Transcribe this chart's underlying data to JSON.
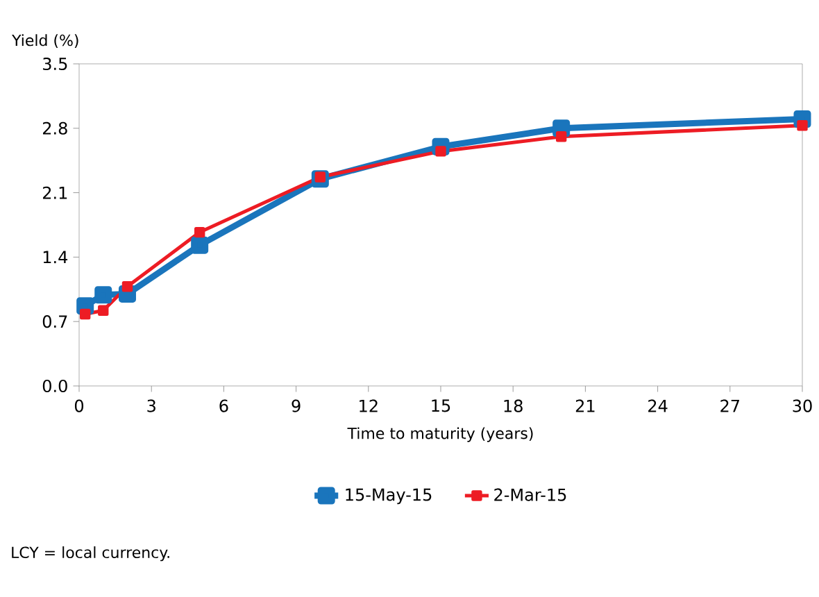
{
  "chart_data": {
    "type": "line",
    "ylabel": "Yield (%)",
    "xlabel": "Time to maturity (years)",
    "xlim": [
      0,
      30
    ],
    "xticks": [
      0,
      3,
      6,
      9,
      12,
      15,
      18,
      21,
      24,
      27,
      30
    ],
    "ylim": [
      0,
      3.5
    ],
    "yticks": [
      {
        "value": 0,
        "label": "0.0"
      },
      0.7,
      1.4,
      2.1,
      2.8,
      3.5
    ],
    "legend": "bottom",
    "marker": "square",
    "line_style": "solid",
    "series": [
      {
        "name": "15-May-15",
        "color": "#1a75bc",
        "x": [
          0.25,
          1,
          2,
          5,
          10,
          15,
          20,
          30
        ],
        "values": [
          0.87,
          0.99,
          1.0,
          1.53,
          2.25,
          2.6,
          2.8,
          2.9
        ]
      },
      {
        "name": "2-Mar-15",
        "color": "#ed1c24",
        "x": [
          0.25,
          1,
          2,
          5,
          10,
          15,
          20,
          30
        ],
        "values": [
          0.78,
          0.82,
          1.08,
          1.67,
          2.27,
          2.55,
          2.71,
          2.83
        ]
      }
    ],
    "annotations": [
      "LCY = local currency."
    ]
  }
}
